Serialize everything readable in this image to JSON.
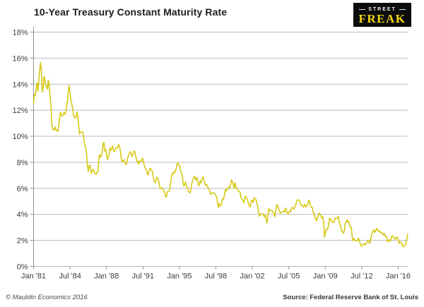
{
  "header": {
    "title": "10-Year Treasury Constant Maturity Rate"
  },
  "logo": {
    "line1": "STREET",
    "line2": "FREAK",
    "bg_color": "#0c0c0c",
    "accent_color": "#f2d713"
  },
  "footer": {
    "copyright": "© Mauldin Economics 2016",
    "source": "Source: Federal Reserve Bank of St. Louis"
  },
  "chart_data": {
    "type": "line",
    "title": "10-Year Treasury Constant Maturity Rate",
    "series_name": "10-Year Treasury Constant Maturity Rate (%)",
    "frequency": "monthly",
    "x_start": "Jan 1981",
    "x_end": "Dec 2016",
    "ylim": [
      0,
      18
    ],
    "y_tick_step": 2,
    "y_tick_labels": [
      "0%",
      "2%",
      "4%",
      "6%",
      "8%",
      "10%",
      "12%",
      "14%",
      "16%",
      "18%"
    ],
    "x_tick_labels": [
      "Jan '81",
      "Jul '84",
      "Jan '88",
      "Jul '91",
      "Jan '95",
      "Jul '98",
      "Jan '02",
      "Jul '05",
      "Jan '09",
      "Jul '12",
      "Jan '16"
    ],
    "x_tick_month_index": [
      0,
      42,
      84,
      126,
      168,
      210,
      252,
      294,
      336,
      378,
      420
    ],
    "grid": true,
    "legend": "none",
    "line_color": "#d7c916",
    "grid_color": "#b9b9b9",
    "axis_color": "#8f8f8f",
    "values": [
      12.57,
      13.19,
      13.12,
      13.68,
      14.1,
      13.47,
      14.28,
      14.94,
      15.68,
      15.15,
      13.39,
      13.72,
      14.59,
      14.43,
      13.86,
      13.87,
      13.62,
      14.3,
      13.95,
      13.06,
      12.34,
      10.91,
      10.55,
      10.54,
      10.46,
      10.72,
      10.51,
      10.4,
      10.38,
      10.85,
      11.38,
      11.85,
      11.65,
      11.54,
      11.69,
      11.83,
      11.67,
      11.84,
      12.32,
      12.63,
      13.41,
      13.9,
      13.36,
      12.72,
      12.52,
      12.16,
      11.57,
      11.5,
      11.38,
      11.51,
      11.86,
      11.43,
      10.85,
      10.16,
      10.31,
      10.33,
      10.37,
      10.24,
      9.78,
      9.26,
      9.19,
      8.7,
      7.78,
      7.3,
      7.71,
      7.8,
      7.3,
      7.17,
      7.45,
      7.43,
      7.25,
      7.11,
      7.08,
      7.25,
      7.25,
      8.02,
      8.61,
      8.4,
      8.45,
      8.76,
      9.42,
      9.52,
      8.86,
      8.99,
      8.67,
      8.21,
      8.37,
      8.72,
      9.09,
      8.92,
      9.06,
      9.26,
      8.98,
      8.8,
      8.96,
      9.11,
      9.09,
      9.17,
      9.36,
      9.18,
      8.86,
      8.28,
      8.02,
      8.11,
      8.19,
      8.01,
      7.87,
      7.84,
      8.21,
      8.47,
      8.59,
      8.79,
      8.76,
      8.48,
      8.47,
      8.75,
      8.89,
      8.72,
      8.39,
      8.08,
      8.09,
      7.85,
      8.11,
      8.04,
      8.07,
      8.28,
      8.27,
      7.9,
      7.65,
      7.53,
      7.42,
      7.09,
      7.03,
      7.34,
      7.54,
      7.48,
      7.39,
      7.26,
      6.84,
      6.59,
      6.42,
      6.59,
      6.87,
      6.77,
      6.6,
      6.26,
      5.98,
      5.97,
      6.04,
      5.96,
      5.81,
      5.68,
      5.36,
      5.33,
      5.72,
      5.77,
      5.75,
      5.97,
      6.48,
      6.97,
      7.18,
      7.1,
      7.3,
      7.24,
      7.46,
      7.74,
      7.96,
      7.81,
      7.78,
      7.47,
      7.2,
      7.06,
      6.63,
      6.17,
      6.28,
      6.49,
      6.2,
      6.04,
      5.93,
      5.71,
      5.65,
      5.81,
      6.27,
      6.51,
      6.74,
      6.91,
      6.87,
      6.64,
      6.83,
      6.53,
      6.2,
      6.3,
      6.58,
      6.42,
      6.69,
      6.89,
      6.71,
      6.49,
      6.22,
      6.3,
      6.21,
      6.03,
      5.88,
      5.81,
      5.54,
      5.57,
      5.65,
      5.64,
      5.65,
      5.5,
      5.46,
      5.34,
      4.81,
      4.53,
      4.83,
      4.65,
      4.72,
      5.0,
      5.23,
      5.18,
      5.54,
      5.9,
      5.79,
      5.94,
      5.92,
      6.11,
      6.03,
      6.28,
      6.66,
      6.52,
      6.26,
      5.99,
      6.44,
      6.1,
      6.05,
      5.83,
      5.8,
      5.74,
      5.72,
      5.24,
      5.16,
      5.1,
      4.89,
      5.14,
      5.39,
      5.28,
      5.24,
      4.97,
      4.73,
      4.57,
      4.65,
      5.09,
      5.04,
      4.91,
      5.28,
      5.21,
      5.16,
      4.93,
      4.65,
      4.26,
      3.87,
      3.94,
      4.05,
      4.03,
      4.05,
      3.9,
      3.81,
      3.96,
      3.57,
      3.33,
      3.98,
      4.45,
      4.27,
      4.29,
      4.3,
      4.27,
      4.15,
      4.08,
      3.83,
      4.35,
      4.72,
      4.73,
      4.5,
      4.28,
      4.13,
      4.1,
      4.19,
      4.23,
      4.22,
      4.17,
      4.5,
      4.34,
      4.14,
      4.0,
      4.18,
      4.26,
      4.2,
      4.46,
      4.54,
      4.47,
      4.42,
      4.57,
      4.72,
      4.99,
      5.11,
      5.11,
      5.09,
      4.88,
      4.72,
      4.73,
      4.6,
      4.56,
      4.76,
      4.72,
      4.56,
      4.69,
      4.75,
      5.1,
      5.0,
      4.67,
      4.52,
      4.53,
      4.15,
      4.1,
      3.74,
      3.74,
      3.51,
      3.68,
      3.88,
      4.1,
      4.01,
      3.89,
      3.69,
      3.81,
      3.53,
      2.25,
      2.52,
      2.87,
      2.82,
      2.93,
      3.29,
      3.72,
      3.56,
      3.59,
      3.4,
      3.39,
      3.4,
      3.59,
      3.73,
      3.69,
      3.73,
      3.85,
      3.42,
      3.2,
      3.01,
      2.7,
      2.65,
      2.54,
      2.76,
      3.29,
      3.39,
      3.58,
      3.41,
      3.46,
      3.17,
      3.0,
      3.0,
      2.3,
      1.98,
      2.15,
      2.01,
      1.98,
      1.97,
      1.97,
      2.17,
      2.05,
      1.8,
      1.62,
      1.53,
      1.68,
      1.72,
      1.75,
      1.65,
      1.72,
      1.91,
      1.98,
      1.96,
      1.76,
      1.93,
      2.3,
      2.58,
      2.74,
      2.81,
      2.62,
      2.72,
      2.9,
      2.86,
      2.71,
      2.72,
      2.71,
      2.56,
      2.6,
      2.54,
      2.42,
      2.53,
      2.3,
      2.33,
      2.21,
      1.88,
      1.98,
      2.04,
      1.94,
      2.2,
      2.36,
      2.32,
      2.17,
      2.17,
      2.07,
      2.26,
      2.24,
      2.09,
      1.78,
      1.89,
      1.81,
      1.81,
      1.64,
      1.5,
      1.56,
      1.63,
      1.76,
      2.14,
      2.49
    ]
  }
}
